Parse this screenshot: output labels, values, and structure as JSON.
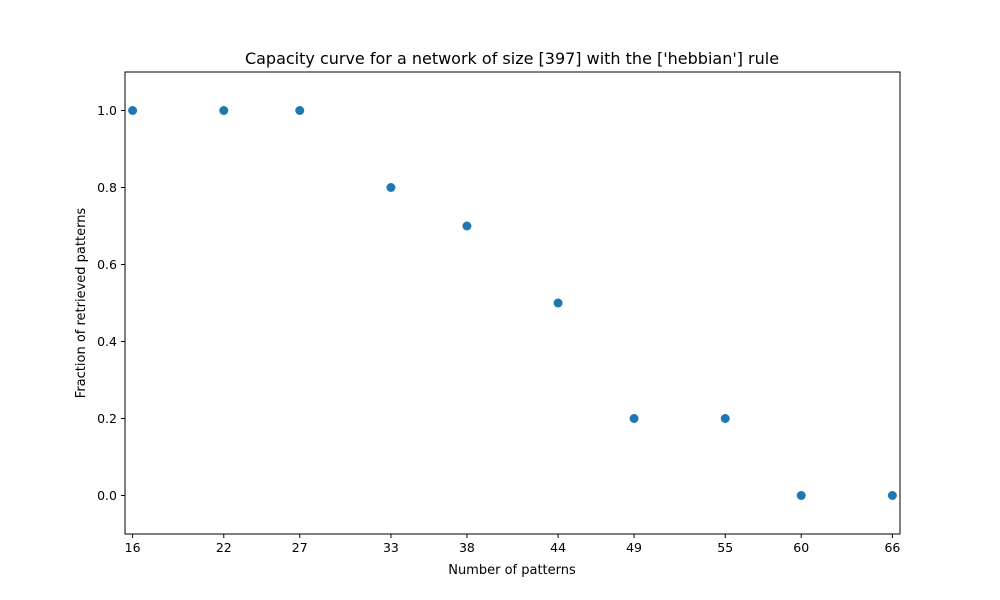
{
  "chart_data": {
    "type": "scatter",
    "title": "Capacity curve for a network of size [397] with the ['hebbian'] rule",
    "xlabel": "Number of patterns",
    "ylabel": "Fraction of retrieved patterns",
    "x": [
      16,
      22,
      27,
      33,
      38,
      44,
      49,
      55,
      60,
      66
    ],
    "y": [
      1.0,
      1.0,
      1.0,
      0.8,
      0.7,
      0.5,
      0.2,
      0.2,
      0.0,
      0.0
    ],
    "xticks": [
      "16",
      "22",
      "27",
      "33",
      "38",
      "44",
      "49",
      "55",
      "60",
      "66"
    ],
    "yticks": [
      "0.0",
      "0.2",
      "0.4",
      "0.6",
      "0.8",
      "1.0"
    ],
    "xlim": [
      15.5,
      66.5
    ],
    "ylim": [
      -0.1,
      1.1
    ],
    "grid": false,
    "marker_color": "#1f77b4"
  }
}
